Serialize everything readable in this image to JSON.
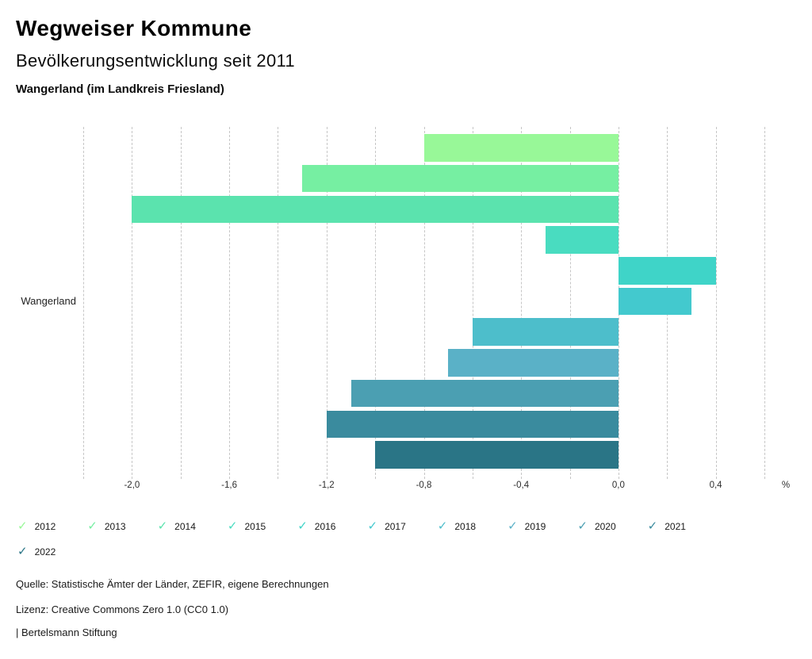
{
  "header": {
    "title": "Wegweiser Kommune",
    "subtitle": "Bevölkerungsentwicklung seit 2011",
    "region": "Wangerland (im Landkreis Friesland)"
  },
  "chart_data": {
    "type": "bar",
    "orientation": "horizontal",
    "title": "Bevölkerungsentwicklung seit 2011",
    "category": "Wangerland",
    "unit": "%",
    "xlim": [
      -2.2,
      0.6
    ],
    "gridline_step": 0.2,
    "grid": true,
    "ticks": [
      {
        "value": -2.0,
        "label": "-2,0"
      },
      {
        "value": -1.6,
        "label": "-1,6"
      },
      {
        "value": -1.2,
        "label": "-1,2"
      },
      {
        "value": -0.8,
        "label": "-0,8"
      },
      {
        "value": -0.4,
        "label": "-0,4"
      },
      {
        "value": 0.0,
        "label": "0,0"
      },
      {
        "value": 0.4,
        "label": "0,4"
      }
    ],
    "series": [
      {
        "name": "2012",
        "value": -0.8,
        "color": "#98F898"
      },
      {
        "name": "2013",
        "value": -1.3,
        "color": "#76EFA2"
      },
      {
        "name": "2014",
        "value": -2.0,
        "color": "#5BE3AE"
      },
      {
        "name": "2015",
        "value": -0.3,
        "color": "#49DCC0"
      },
      {
        "name": "2016",
        "value": 0.4,
        "color": "#3FD4C8"
      },
      {
        "name": "2017",
        "value": 0.3,
        "color": "#43C9CE"
      },
      {
        "name": "2018",
        "value": -0.6,
        "color": "#4DBECB"
      },
      {
        "name": "2019",
        "value": -0.7,
        "color": "#5AB1C7"
      },
      {
        "name": "2020",
        "value": -1.1,
        "color": "#4B9FB2"
      },
      {
        "name": "2021",
        "value": -1.2,
        "color": "#3A8B9E"
      },
      {
        "name": "2022",
        "value": -1.0,
        "color": "#2A7586"
      }
    ],
    "legend_position": "bottom"
  },
  "legend": {
    "check_glyph": "✓"
  },
  "footer": {
    "source": "Quelle: Statistische Ämter der Länder, ZEFIR, eigene Berechnungen",
    "license": "Lizenz: Creative Commons Zero 1.0 (CC0 1.0)",
    "attribution": "| Bertelsmann Stiftung"
  }
}
